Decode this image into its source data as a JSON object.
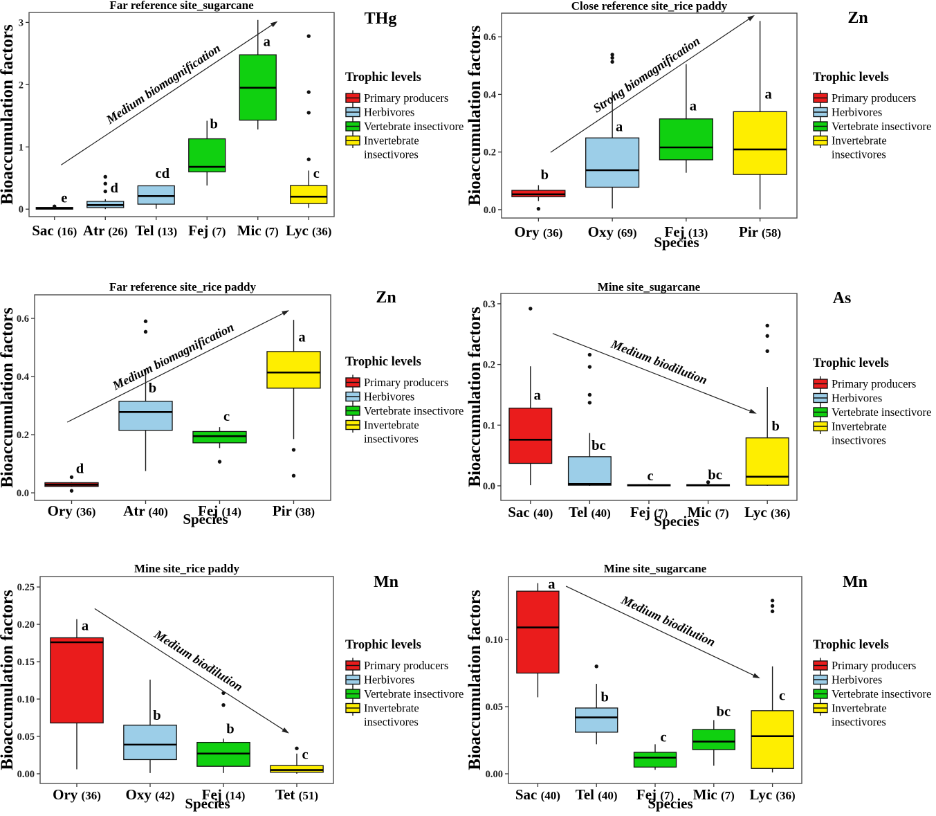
{
  "figure": {
    "ylabel": "Bioaccumulation factors",
    "xlabel": "Species",
    "legend": {
      "title": "Trophic levels",
      "items": [
        {
          "label": "Primary producers",
          "color": "#ea1c1c",
          "wrap": false
        },
        {
          "label": "Herbivores",
          "color": "#9ccee8",
          "wrap": false
        },
        {
          "label": "Vertebrate insectivore",
          "color": "#10d010",
          "wrap": false
        },
        {
          "label": "Invertebrate insectivores",
          "color": "#feee00",
          "wrap": true
        }
      ]
    }
  },
  "chart_data": [
    {
      "type": "box",
      "title": "Far reference site_sugarcane",
      "element": "THg",
      "ylabel": "Bioaccumulation factors",
      "xlabel": null,
      "ylim": [
        -0.12,
        3.16
      ],
      "yticks": [
        0,
        1,
        2,
        3
      ],
      "ytick_labels": [
        "0",
        "1",
        "2",
        "3"
      ],
      "annotation": {
        "text": "Medium biomagnification",
        "fx1": 0.105,
        "v1": 0.71,
        "fx2": 0.815,
        "v2": 3.02
      },
      "boxes": [
        {
          "species": "Sac",
          "n": "16",
          "color": "#971717",
          "low": 0.0,
          "q1": 0.0,
          "median": 0.012,
          "q3": 0.028,
          "high": 0.05,
          "outliers": [
            0.045
          ],
          "letter": "e",
          "letter_dx": 14,
          "letter_v": 0.11
        },
        {
          "species": "Atr",
          "n": "26",
          "color": "#9ccee8",
          "low": 0.0,
          "q1": 0.025,
          "median": 0.065,
          "q3": 0.125,
          "high": 0.16,
          "outliers": [
            0.285,
            0.41,
            0.52
          ],
          "letter": "d",
          "letter_dx": 13,
          "letter_v": 0.27
        },
        {
          "species": "Tel",
          "n": "13",
          "color": "#9ccee8",
          "low": 0.005,
          "q1": 0.08,
          "median": 0.21,
          "q3": 0.375,
          "high": 0.375,
          "outliers": [],
          "letter": "cd",
          "letter_dx": 9,
          "letter_v": 0.5
        },
        {
          "species": "Fej",
          "n": "7",
          "color": "#10d010",
          "low": 0.38,
          "q1": 0.6,
          "median": 0.68,
          "q3": 1.13,
          "high": 1.42,
          "outliers": [],
          "letter": "b",
          "letter_dx": 10,
          "letter_v": 1.3
        },
        {
          "species": "Mic",
          "n": "7",
          "color": "#10d010",
          "low": 1.28,
          "q1": 1.43,
          "median": 1.95,
          "q3": 2.48,
          "high": 3.04,
          "outliers": [],
          "letter": "a",
          "letter_dx": 13,
          "letter_v": 2.62
        },
        {
          "species": "Lyc",
          "n": "36",
          "color": "#feee00",
          "low": 0.02,
          "q1": 0.09,
          "median": 0.2,
          "q3": 0.38,
          "high": 0.62,
          "outliers": [
            0.8,
            1.55,
            1.88,
            2.78
          ],
          "letter": "c",
          "letter_dx": 11,
          "letter_v": 0.5
        }
      ]
    },
    {
      "type": "box",
      "title": "Close reference site_rice paddy",
      "element": "Zn",
      "ylabel": "Bioaccumulation factors",
      "xlabel": "Species",
      "ylim": [
        -0.029,
        0.682
      ],
      "yticks": [
        0,
        0.2,
        0.4,
        0.6
      ],
      "ytick_labels": [
        "0.0",
        "0.2",
        "0.4",
        "0.6"
      ],
      "annotation": {
        "text": "Strong biomagnification",
        "fx1": 0.166,
        "v1": 0.199,
        "fx2": 0.857,
        "v2": 0.675
      },
      "boxes": [
        {
          "species": "Ory",
          "n": "36",
          "color": "#ea1c1c",
          "low": 0.03,
          "q1": 0.045,
          "median": 0.053,
          "q3": 0.067,
          "high": 0.085,
          "outliers": [
            0.003
          ],
          "letter": "b",
          "letter_dx": 9,
          "letter_v": 0.105
        },
        {
          "species": "Oxy",
          "n": "69",
          "color": "#9ccee8",
          "low": 0.004,
          "q1": 0.078,
          "median": 0.137,
          "q3": 0.249,
          "high": 0.41,
          "outliers": [
            0.513,
            0.527,
            0.538
          ],
          "letter": "a",
          "letter_dx": 10,
          "letter_v": 0.272
        },
        {
          "species": "Fej",
          "n": "13",
          "color": "#10d010",
          "low": 0.128,
          "q1": 0.173,
          "median": 0.216,
          "q3": 0.315,
          "high": 0.505,
          "outliers": [],
          "letter": "a",
          "letter_dx": 10,
          "letter_v": 0.345
        },
        {
          "species": "Pir",
          "n": "58",
          "color": "#feee00",
          "low": 0.001,
          "q1": 0.122,
          "median": 0.209,
          "q3": 0.34,
          "high": 0.655,
          "outliers": [],
          "letter": "a",
          "letter_dx": 12,
          "letter_v": 0.385
        }
      ]
    },
    {
      "type": "box",
      "title": "Far reference site_rice paddy",
      "element": "Zn",
      "ylabel": "Bioaccumulation factors",
      "xlabel": "Species",
      "ylim": [
        -0.026,
        0.681
      ],
      "yticks": [
        0,
        0.2,
        0.4,
        0.6
      ],
      "ytick_labels": [
        "0.0",
        "0.2",
        "0.4",
        "0.6"
      ],
      "annotation": {
        "text": "Medium biomagnification",
        "fx1": 0.11,
        "v1": 0.243,
        "fx2": 0.86,
        "v2": 0.628
      },
      "boxes": [
        {
          "species": "Ory",
          "n": "36",
          "color": "#a01616",
          "low": 0.02,
          "q1": 0.022,
          "median": 0.028,
          "q3": 0.035,
          "high": 0.037,
          "outliers": [
            0.007,
            0.054
          ],
          "letter": "d",
          "letter_dx": 12,
          "letter_v": 0.068
        },
        {
          "species": "Atr",
          "n": "40",
          "color": "#9ccee8",
          "low": 0.075,
          "q1": 0.215,
          "median": 0.278,
          "q3": 0.315,
          "high": 0.425,
          "outliers": [
            0.554,
            0.59
          ],
          "letter": "b",
          "letter_dx": 10,
          "letter_v": 0.345
        },
        {
          "species": "Fej",
          "n": "14",
          "color": "#10d010",
          "low": 0.154,
          "q1": 0.172,
          "median": 0.195,
          "q3": 0.211,
          "high": 0.226,
          "outliers": [
            0.107
          ],
          "letter": "c",
          "letter_dx": 10,
          "letter_v": 0.248
        },
        {
          "species": "Pir",
          "n": "38",
          "color": "#feee00",
          "low": 0.185,
          "q1": 0.36,
          "median": 0.414,
          "q3": 0.486,
          "high": 0.595,
          "outliers": [
            0.148,
            0.059
          ],
          "letter": "a",
          "letter_dx": 12,
          "letter_v": 0.52
        }
      ]
    },
    {
      "type": "box",
      "title": "Mine site_sugarcane",
      "element": "As",
      "ylabel": "Bioaccumulation factors",
      "xlabel": "Species",
      "ylim": [
        -0.024,
        0.317
      ],
      "yticks": [
        0,
        0.1,
        0.2,
        0.3
      ],
      "ytick_labels": [
        "0.0",
        "0.1",
        "0.2",
        "0.3"
      ],
      "annotation": {
        "text": "Medium biodilution",
        "fx1": 0.175,
        "v1": 0.251,
        "fx2": 0.864,
        "v2": 0.119
      },
      "boxes": [
        {
          "species": "Sac",
          "n": "40",
          "color": "#ea1c1c",
          "low": 0.001,
          "q1": 0.037,
          "median": 0.076,
          "q3": 0.128,
          "high": 0.197,
          "outliers": [
            0.292
          ],
          "letter": "a",
          "letter_dx": 10,
          "letter_v": 0.142
        },
        {
          "species": "Tel",
          "n": "40",
          "color": "#9ccee8",
          "low": 0.0,
          "q1": 0.001,
          "median": 0.003,
          "q3": 0.048,
          "high": 0.087,
          "outliers": [
            0.137,
            0.15,
            0.196,
            0.216
          ],
          "letter": "bc",
          "letter_dx": 13,
          "letter_v": 0.059
        },
        {
          "species": "Fej",
          "n": "7",
          "color": "#10d010",
          "low": 0.0,
          "q1": 0.0,
          "median": 0.001,
          "q3": 0.002,
          "high": 0.003,
          "outliers": [],
          "letter": "c",
          "letter_dx": 2,
          "letter_v": 0.009
        },
        {
          "species": "Mic",
          "n": "7",
          "color": "#10d010",
          "low": 0.0,
          "q1": 0.0,
          "median": 0.001,
          "q3": 0.002,
          "high": 0.003,
          "outliers": [
            0.006
          ],
          "letter": "bc",
          "letter_dx": 10,
          "letter_v": 0.011
        },
        {
          "species": "Lyc",
          "n": "36",
          "color": "#feee00",
          "low": 0.0,
          "q1": 0.001,
          "median": 0.015,
          "q3": 0.079,
          "high": 0.163,
          "outliers": [
            0.222,
            0.247,
            0.264
          ],
          "letter": "b",
          "letter_dx": 12,
          "letter_v": 0.091
        }
      ]
    },
    {
      "type": "box",
      "title": "Mine site_rice paddy",
      "element": "Mn",
      "ylabel": "Bioaccumulation factors",
      "xlabel": "Species",
      "ylim": [
        -0.013,
        0.264
      ],
      "yticks": [
        0,
        0.05,
        0.1,
        0.15,
        0.2,
        0.25
      ],
      "ytick_labels": [
        "0.00",
        "0.05",
        "0.10",
        "0.15",
        "0.20",
        "0.25"
      ],
      "annotation": {
        "text": "Medium biodilution",
        "fx1": 0.186,
        "v1": 0.221,
        "fx2": 0.849,
        "v2": 0.054
      },
      "boxes": [
        {
          "species": "Ory",
          "n": "36",
          "color": "#ea1c1c",
          "low": 0.006,
          "q1": 0.068,
          "median": 0.176,
          "q3": 0.182,
          "high": 0.207,
          "outliers": [],
          "letter": "a",
          "letter_dx": 12,
          "letter_v": 0.192
        },
        {
          "species": "Oxy",
          "n": "42",
          "color": "#9ccee8",
          "low": 0.001,
          "q1": 0.019,
          "median": 0.039,
          "q3": 0.065,
          "high": 0.126,
          "outliers": [],
          "letter": "b",
          "letter_dx": 10,
          "letter_v": 0.072
        },
        {
          "species": "Fej",
          "n": "14",
          "color": "#10d010",
          "low": 0.001,
          "q1": 0.01,
          "median": 0.027,
          "q3": 0.042,
          "high": 0.047,
          "outliers": [
            0.092,
            0.108
          ],
          "letter": "b",
          "letter_dx": 10,
          "letter_v": 0.054
        },
        {
          "species": "Tet",
          "n": "51",
          "color": "#feee00",
          "low": 0.0,
          "q1": 0.002,
          "median": 0.005,
          "q3": 0.011,
          "high": 0.027,
          "outliers": [
            0.034
          ],
          "letter": "c",
          "letter_dx": 12,
          "letter_v": 0.02
        }
      ]
    },
    {
      "type": "box",
      "title": "Mine site_sugarcane",
      "element": "Mn",
      "ylabel": "Bioaccumulation factors",
      "xlabel": "Species",
      "ylim": [
        -0.0072,
        0.1469
      ],
      "yticks": [
        0,
        0.05,
        0.1
      ],
      "ytick_labels": [
        "0.00",
        "0.05",
        "0.10"
      ],
      "annotation": {
        "text": "Medium biodilution",
        "fx1": 0.196,
        "v1": 0.1397,
        "fx2": 0.858,
        "v2": 0.0711
      },
      "boxes": [
        {
          "species": "Sac",
          "n": "40",
          "color": "#ea1c1c",
          "low": 0.057,
          "q1": 0.075,
          "median": 0.109,
          "q3": 0.136,
          "high": 0.142,
          "outliers": [],
          "letter": "a",
          "letter_dx": 20,
          "letter_v": 0.138
        },
        {
          "species": "Tel",
          "n": "40",
          "color": "#9ccee8",
          "low": 0.022,
          "q1": 0.031,
          "median": 0.042,
          "q3": 0.049,
          "high": 0.067,
          "outliers": [
            0.08
          ],
          "letter": "b",
          "letter_dx": 12,
          "letter_v": 0.054
        },
        {
          "species": "Fej",
          "n": "7",
          "color": "#10d010",
          "low": 0.003,
          "q1": 0.005,
          "median": 0.012,
          "q3": 0.016,
          "high": 0.022,
          "outliers": [],
          "letter": "c",
          "letter_dx": 12,
          "letter_v": 0.024
        },
        {
          "species": "Mic",
          "n": "7",
          "color": "#10d010",
          "low": 0.006,
          "q1": 0.018,
          "median": 0.024,
          "q3": 0.033,
          "high": 0.04,
          "outliers": [],
          "letter": "bc",
          "letter_dx": 14,
          "letter_v": 0.043
        },
        {
          "species": "Lyc",
          "n": "36",
          "color": "#feee00",
          "low": 0.001,
          "q1": 0.004,
          "median": 0.028,
          "q3": 0.047,
          "high": 0.08,
          "outliers": [
            0.121,
            0.125,
            0.129
          ],
          "letter": "c",
          "letter_dx": 14,
          "letter_v": 0.055
        }
      ]
    }
  ]
}
